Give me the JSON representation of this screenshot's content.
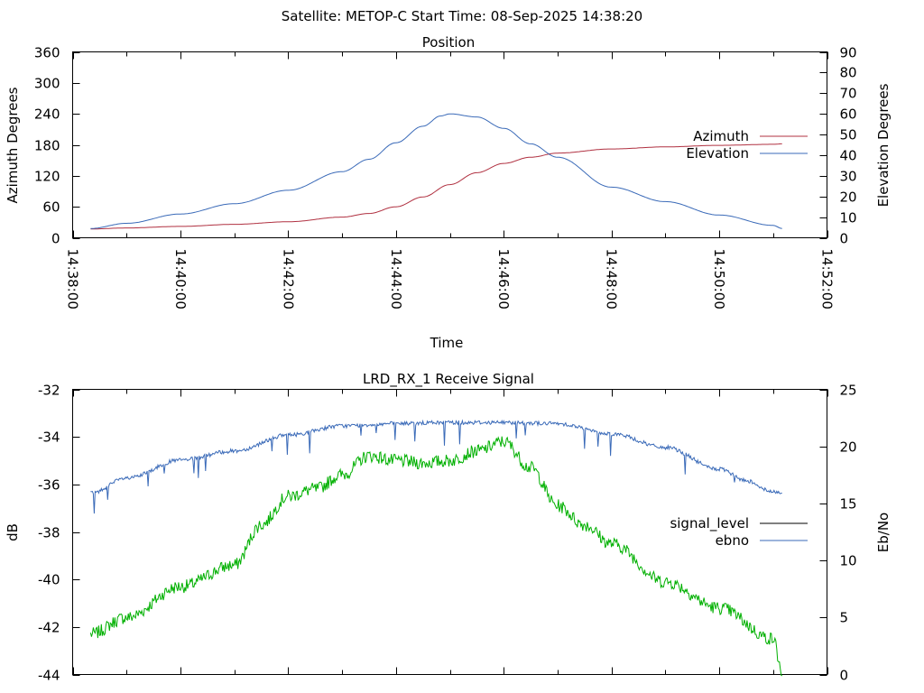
{
  "header": {
    "title": "Satellite: METOP-C    Start Time: 08-Sep-2025 14:38:20"
  },
  "colors": {
    "azimuth": "#b03040",
    "elevation": "#3a6ab8",
    "signal_level": "#000000",
    "ebno": "#3a6ab8",
    "green_trace": "#00b000"
  },
  "chart_data": [
    {
      "type": "line",
      "title": "Position",
      "xlabel": "Time",
      "ylabel": "Azimuth Degrees",
      "y2label": "Elevation Degrees",
      "xlim": [
        "14:38:00",
        "14:52:00"
      ],
      "x_ticks": [
        "14:38:00",
        "14:40:00",
        "14:42:00",
        "14:44:00",
        "14:46:00",
        "14:48:00",
        "14:50:00",
        "14:52:00"
      ],
      "ylim": [
        0,
        360
      ],
      "y_ticks": [
        "0",
        "60",
        "120",
        "180",
        "240",
        "300",
        "360"
      ],
      "y2lim": [
        0,
        90
      ],
      "y2_ticks": [
        "0",
        "10",
        "20",
        "30",
        "40",
        "50",
        "60",
        "70",
        "80",
        "90"
      ],
      "legend_position": "right",
      "series": [
        {
          "name": "Azimuth",
          "axis": "y",
          "x": [
            "14:38:20",
            "14:39:00",
            "14:40:00",
            "14:41:00",
            "14:42:00",
            "14:43:00",
            "14:43:30",
            "14:44:00",
            "14:44:30",
            "14:45:00",
            "14:45:30",
            "14:46:00",
            "14:46:30",
            "14:47:00",
            "14:48:00",
            "14:49:00",
            "14:50:00",
            "14:51:00",
            "14:51:10"
          ],
          "values": [
            17,
            19,
            22,
            26,
            31,
            40,
            47,
            60,
            79,
            103,
            126,
            144,
            156,
            164,
            172,
            176,
            179,
            181,
            182
          ]
        },
        {
          "name": "Elevation",
          "axis": "y2",
          "x": [
            "14:38:20",
            "14:39:00",
            "14:40:00",
            "14:41:00",
            "14:42:00",
            "14:43:00",
            "14:43:30",
            "14:44:00",
            "14:44:30",
            "14:44:50",
            "14:45:00",
            "14:45:30",
            "14:46:00",
            "14:46:30",
            "14:47:00",
            "14:48:00",
            "14:49:00",
            "14:50:00",
            "14:51:00",
            "14:51:10"
          ],
          "values": [
            4.5,
            7,
            11.5,
            16.5,
            23,
            32,
            38,
            46,
            54,
            59,
            60,
            58.5,
            53,
            45.5,
            39,
            24.5,
            17.5,
            11,
            6,
            4.5
          ]
        }
      ]
    },
    {
      "type": "line",
      "title": "LRD_RX_1 Receive Signal",
      "ylabel": "dB",
      "y2label": "Eb/No",
      "xlim": [
        "14:38:00",
        "14:52:00"
      ],
      "ylim": [
        -44,
        -32
      ],
      "y_ticks": [
        "-44",
        "-42",
        "-40",
        "-38",
        "-36",
        "-34",
        "-32"
      ],
      "y2lim": [
        0,
        25
      ],
      "y2_ticks": [
        "0",
        "5",
        "10",
        "15",
        "20",
        "25"
      ],
      "legend_position": "right",
      "series": [
        {
          "name": "signal_level",
          "axis": "y",
          "x": [
            "14:38:20",
            "14:39:00",
            "14:40:00",
            "14:41:00",
            "14:41:30",
            "14:42:00",
            "14:42:30",
            "14:43:00",
            "14:43:30",
            "14:44:00",
            "14:44:30",
            "14:45:00",
            "14:45:30",
            "14:46:00",
            "14:46:30",
            "14:47:00",
            "14:47:30",
            "14:48:00",
            "14:49:00",
            "14:50:00",
            "14:51:00",
            "14:51:10"
          ],
          "values": [
            -42.3,
            -41.6,
            -40.3,
            -39.4,
            -37.7,
            -36.5,
            -36.2,
            -35.6,
            -34.8,
            -35.0,
            -35.1,
            -35.0,
            -34.6,
            -34.2,
            -35.3,
            -36.9,
            -37.7,
            -38.5,
            -40.1,
            -41.2,
            -42.5,
            -43.9
          ]
        },
        {
          "name": "ebno",
          "axis": "y2",
          "x": [
            "14:38:20",
            "14:39:00",
            "14:40:00",
            "14:41:00",
            "14:42:00",
            "14:43:00",
            "14:44:00",
            "14:45:00",
            "14:46:00",
            "14:47:00",
            "14:48:00",
            "14:49:00",
            "14:50:00",
            "14:50:30",
            "14:51:00",
            "14:51:10"
          ],
          "values": [
            15.9,
            17.2,
            18.8,
            19.6,
            21.0,
            21.8,
            22.0,
            22.1,
            22.1,
            22.0,
            21.1,
            19.9,
            18.0,
            17.0,
            16.0,
            16.0
          ]
        }
      ]
    }
  ]
}
